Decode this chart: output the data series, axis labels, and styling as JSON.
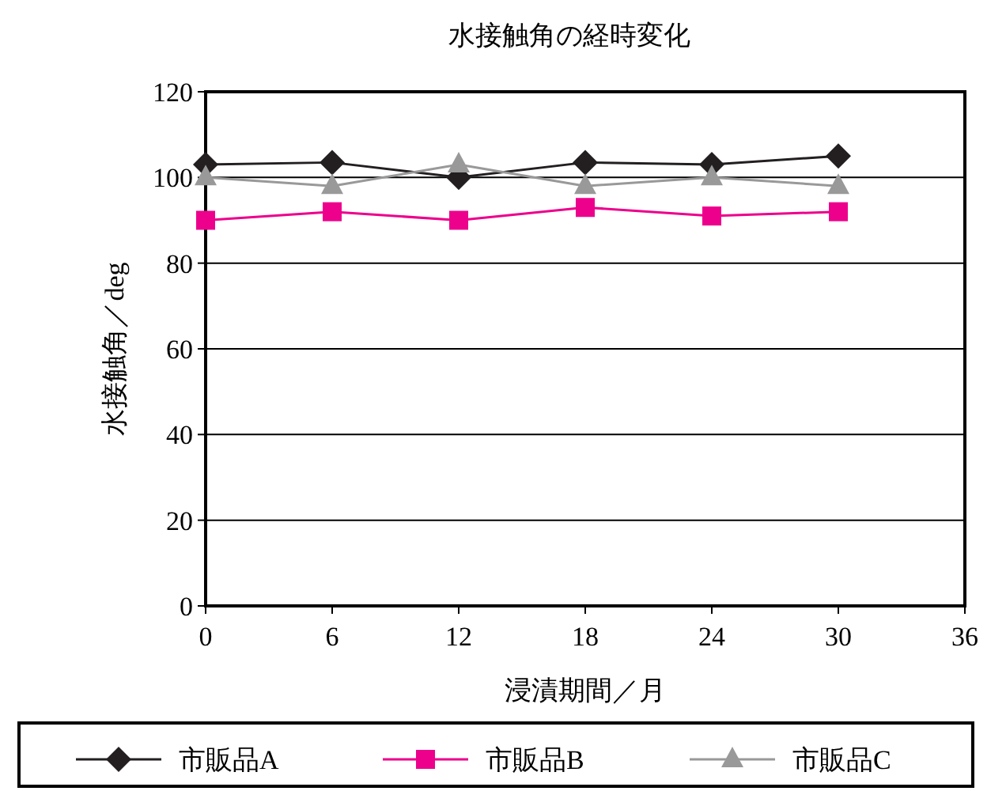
{
  "chart_data": {
    "type": "line",
    "title": "水接触角の経時変化",
    "xlabel": "浸漬期間／月",
    "ylabel": "水接触角／deg",
    "x": [
      0,
      6,
      12,
      18,
      24,
      30
    ],
    "xlim": [
      0,
      36
    ],
    "xticks": [
      0,
      6,
      12,
      18,
      24,
      30,
      36
    ],
    "ylim": [
      0,
      120
    ],
    "yticks": [
      0,
      20,
      40,
      60,
      80,
      100,
      120
    ],
    "grid": "y",
    "legend": "bottom",
    "series": [
      {
        "name": "市販品A",
        "color": "#231f20",
        "marker": "diamond",
        "values": [
          103,
          103.5,
          100,
          103.5,
          103,
          105
        ]
      },
      {
        "name": "市販品B",
        "color": "#ec008c",
        "marker": "square",
        "values": [
          90,
          92,
          90,
          93,
          91,
          92
        ]
      },
      {
        "name": "市販品C",
        "color": "#999999",
        "marker": "triangle",
        "values": [
          100,
          98,
          103,
          98,
          100,
          98
        ]
      }
    ]
  }
}
